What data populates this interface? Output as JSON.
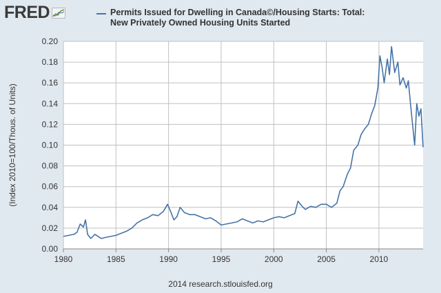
{
  "logo": {
    "text": "FRED",
    "icon": "line-graph-icon"
  },
  "legend": {
    "line1": "Permits Issued for Dwelling in Canada©/Housing Starts: Total:",
    "line2": "New Privately Owned Housing Units Started",
    "color": "#4572a7"
  },
  "footer": "2014 research.stlouisfed.org",
  "colors": {
    "background": "#e1e9f0",
    "plot_bg": "#ffffff",
    "grid": "#c0c0c0",
    "series": "#4572a7",
    "axis_text": "#333333"
  },
  "chart_data": {
    "type": "line",
    "title": "Permits Issued for Dwelling in Canada©/Housing Starts: Total: New Privately Owned Housing Units Started",
    "xlabel": "",
    "ylabel": "(Index 2010=100/Thous. of Units)",
    "xlim": [
      1980,
      2014.2
    ],
    "ylim": [
      0,
      0.2
    ],
    "xticks": [
      1980,
      1985,
      1990,
      1995,
      2000,
      2005,
      2010
    ],
    "yticks": [
      0.0,
      0.02,
      0.04,
      0.06,
      0.08,
      0.1,
      0.12,
      0.14,
      0.16,
      0.18,
      0.2
    ],
    "ytick_labels": [
      "0.00",
      "0.02",
      "0.04",
      "0.06",
      "0.08",
      "0.10",
      "0.12",
      "0.14",
      "0.16",
      "0.18",
      "0.20"
    ],
    "grid": true,
    "series": [
      {
        "x": [
          1980.0,
          1980.5,
          1981.0,
          1981.3,
          1981.6,
          1981.9,
          1982.1,
          1982.3,
          1982.6,
          1983.0,
          1983.3,
          1983.6,
          1984.0,
          1984.5,
          1985.0,
          1985.5,
          1986.0,
          1986.5,
          1987.0,
          1987.5,
          1988.0,
          1988.5,
          1989.0,
          1989.5,
          1989.9,
          1990.2,
          1990.5,
          1990.8,
          1991.1,
          1991.5,
          1992.0,
          1992.5,
          1993.0,
          1993.5,
          1994.0,
          1994.5,
          1995.0,
          1995.5,
          1996.0,
          1996.5,
          1997.0,
          1997.5,
          1998.0,
          1998.5,
          1999.0,
          1999.5,
          2000.0,
          2000.5,
          2001.0,
          2001.5,
          2002.0,
          2002.3,
          2002.7,
          2003.0,
          2003.5,
          2004.0,
          2004.5,
          2005.0,
          2005.5,
          2006.0,
          2006.3,
          2006.6,
          2007.0,
          2007.3,
          2007.6,
          2008.0,
          2008.3,
          2008.6,
          2009.0,
          2009.3,
          2009.6,
          2009.9,
          2010.1,
          2010.3,
          2010.5,
          2010.8,
          2011.0,
          2011.2,
          2011.5,
          2011.8,
          2012.0,
          2012.3,
          2012.6,
          2012.8,
          2013.0,
          2013.2,
          2013.4,
          2013.6,
          2013.8,
          2014.0,
          2014.2
        ],
        "y": [
          0.012,
          0.013,
          0.014,
          0.016,
          0.024,
          0.021,
          0.028,
          0.014,
          0.01,
          0.014,
          0.012,
          0.01,
          0.011,
          0.012,
          0.013,
          0.015,
          0.017,
          0.02,
          0.025,
          0.028,
          0.03,
          0.033,
          0.032,
          0.036,
          0.043,
          0.036,
          0.028,
          0.031,
          0.04,
          0.035,
          0.033,
          0.033,
          0.031,
          0.029,
          0.03,
          0.027,
          0.023,
          0.024,
          0.025,
          0.026,
          0.029,
          0.027,
          0.025,
          0.027,
          0.026,
          0.028,
          0.03,
          0.031,
          0.03,
          0.032,
          0.034,
          0.046,
          0.041,
          0.038,
          0.041,
          0.04,
          0.043,
          0.043,
          0.04,
          0.044,
          0.056,
          0.06,
          0.072,
          0.078,
          0.095,
          0.1,
          0.11,
          0.115,
          0.12,
          0.13,
          0.138,
          0.155,
          0.186,
          0.175,
          0.16,
          0.183,
          0.168,
          0.195,
          0.17,
          0.18,
          0.158,
          0.165,
          0.155,
          0.162,
          0.14,
          0.12,
          0.1,
          0.14,
          0.128,
          0.135,
          0.098
        ]
      }
    ]
  }
}
